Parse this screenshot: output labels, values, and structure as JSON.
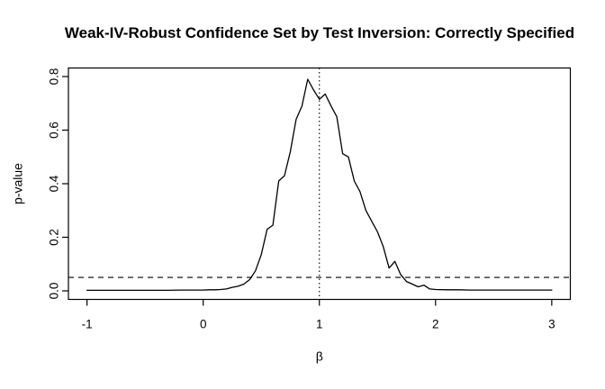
{
  "chart_data": {
    "type": "line",
    "title": "Weak-IV-Robust Confidence Set by Test Inversion: Correctly Specified",
    "xlabel": "β",
    "ylabel": "p-value",
    "x_ticks": [
      -1,
      0,
      1,
      2,
      3
    ],
    "x_tick_labels": [
      "-1",
      "0",
      "1",
      "2",
      "3"
    ],
    "y_ticks": [
      0.0,
      0.2,
      0.4,
      0.6,
      0.8
    ],
    "y_tick_labels": [
      "0.0",
      "0.2",
      "0.4",
      "0.6",
      "0.8"
    ],
    "xlim": [
      -1.16,
      3.16
    ],
    "ylim": [
      -0.032,
      0.832
    ],
    "grid": false,
    "legend": "none",
    "colors": {
      "line": "#000000",
      "background": "#ffffff",
      "box": "#000000"
    },
    "reference_lines": [
      {
        "name": "significance-level",
        "orientation": "horizontal",
        "value": 0.05,
        "style": "dashed",
        "color": "#000000"
      },
      {
        "name": "true-beta",
        "orientation": "vertical",
        "value": 1.0,
        "style": "dotted",
        "color": "#000000"
      }
    ],
    "series": [
      {
        "name": "p-value-curve",
        "style": "solid",
        "color": "#000000",
        "points": [
          [
            -1.0,
            0.002
          ],
          [
            -0.9,
            0.002
          ],
          [
            -0.8,
            0.002
          ],
          [
            -0.7,
            0.002
          ],
          [
            -0.6,
            0.002
          ],
          [
            -0.5,
            0.002
          ],
          [
            -0.4,
            0.002
          ],
          [
            -0.3,
            0.002
          ],
          [
            -0.2,
            0.003
          ],
          [
            -0.1,
            0.003
          ],
          [
            0.0,
            0.003
          ],
          [
            0.05,
            0.004
          ],
          [
            0.1,
            0.004
          ],
          [
            0.15,
            0.005
          ],
          [
            0.2,
            0.007
          ],
          [
            0.25,
            0.013
          ],
          [
            0.3,
            0.017
          ],
          [
            0.35,
            0.025
          ],
          [
            0.4,
            0.042
          ],
          [
            0.45,
            0.075
          ],
          [
            0.5,
            0.135
          ],
          [
            0.55,
            0.23
          ],
          [
            0.6,
            0.245
          ],
          [
            0.65,
            0.41
          ],
          [
            0.7,
            0.43
          ],
          [
            0.75,
            0.52
          ],
          [
            0.8,
            0.64
          ],
          [
            0.85,
            0.69
          ],
          [
            0.9,
            0.79
          ],
          [
            0.95,
            0.75
          ],
          [
            1.0,
            0.715
          ],
          [
            1.05,
            0.735
          ],
          [
            1.1,
            0.69
          ],
          [
            1.15,
            0.65
          ],
          [
            1.2,
            0.512
          ],
          [
            1.25,
            0.5
          ],
          [
            1.3,
            0.41
          ],
          [
            1.35,
            0.37
          ],
          [
            1.4,
            0.3
          ],
          [
            1.45,
            0.26
          ],
          [
            1.5,
            0.22
          ],
          [
            1.55,
            0.165
          ],
          [
            1.6,
            0.085
          ],
          [
            1.65,
            0.11
          ],
          [
            1.7,
            0.06
          ],
          [
            1.75,
            0.035
          ],
          [
            1.8,
            0.025
          ],
          [
            1.85,
            0.015
          ],
          [
            1.9,
            0.021
          ],
          [
            1.95,
            0.007
          ],
          [
            2.0,
            0.005
          ],
          [
            2.1,
            0.004
          ],
          [
            2.2,
            0.004
          ],
          [
            2.3,
            0.003
          ],
          [
            2.4,
            0.003
          ],
          [
            2.5,
            0.003
          ],
          [
            2.6,
            0.003
          ],
          [
            2.7,
            0.003
          ],
          [
            2.8,
            0.003
          ],
          [
            2.9,
            0.003
          ],
          [
            3.0,
            0.003
          ]
        ]
      }
    ]
  }
}
